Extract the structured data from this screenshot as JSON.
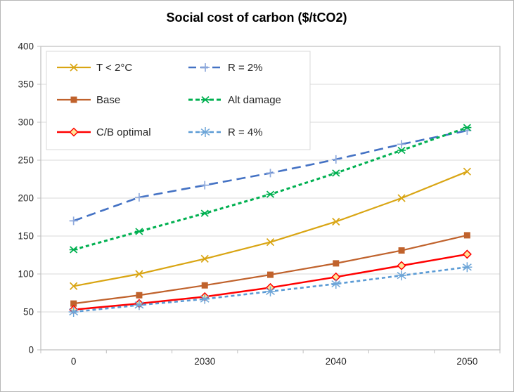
{
  "title": "Social cost of carbon ($/tCO2)",
  "colors": {
    "gridline": "#d9d9d9",
    "plot_border": "#bfbfbf",
    "tick": "#bfbfbf",
    "legend_border": "#d9d9d9",
    "text": "#262626"
  },
  "chart_data": {
    "type": "line",
    "title": "Social cost of carbon ($/tCO2)",
    "xlabel": "",
    "ylabel": "",
    "ylim": [
      0,
      400
    ],
    "y_tick_step": 50,
    "y_tick_labels": [
      "0",
      "50",
      "100",
      "150",
      "200",
      "250",
      "300",
      "350",
      "400"
    ],
    "x_tick_labels": [
      "0",
      "",
      "2030",
      "",
      "2040",
      "",
      "2050"
    ],
    "grid": true,
    "legend_position": "top-left-inside",
    "legend_columns": [
      [
        0,
        1,
        2
      ],
      [
        3,
        4,
        5
      ]
    ],
    "series": [
      {
        "name": "T < 2°C",
        "color": "#d9a513",
        "marker_color": "#d9a513",
        "dash": "solid",
        "marker": "x",
        "values": [
          84,
          100,
          120,
          142,
          169,
          200,
          235
        ]
      },
      {
        "name": "Base",
        "color": "#c0622c",
        "marker_color": "#c0622c",
        "dash": "solid",
        "marker": "square",
        "values": [
          61,
          72,
          85,
          99,
          114,
          131,
          151
        ]
      },
      {
        "name": "C/B optimal",
        "color": "#ff0000",
        "marker_color": "#ff0000",
        "marker_fill": "#ffe699",
        "dash": "solid",
        "marker": "diamond",
        "values": [
          53,
          61,
          70,
          82,
          96,
          111,
          126
        ]
      },
      {
        "name": "R = 2%",
        "color": "#4472c4",
        "marker_color": "#8faadc",
        "dash": "long-dash",
        "marker": "plus",
        "values": [
          170,
          201,
          217,
          233,
          251,
          271,
          289
        ]
      },
      {
        "name": "Alt damage",
        "color": "#00b050",
        "marker_color": "#00b050",
        "dash": "dash",
        "marker": "x-star",
        "values": [
          132,
          156,
          180,
          205,
          233,
          263,
          293
        ]
      },
      {
        "name": "R = 4%",
        "color": "#5b9bd5",
        "marker_color": "#6ea6d8",
        "dash": "dash",
        "marker": "asterisk",
        "values": [
          50,
          59,
          67,
          77,
          87,
          98,
          109
        ]
      }
    ]
  }
}
